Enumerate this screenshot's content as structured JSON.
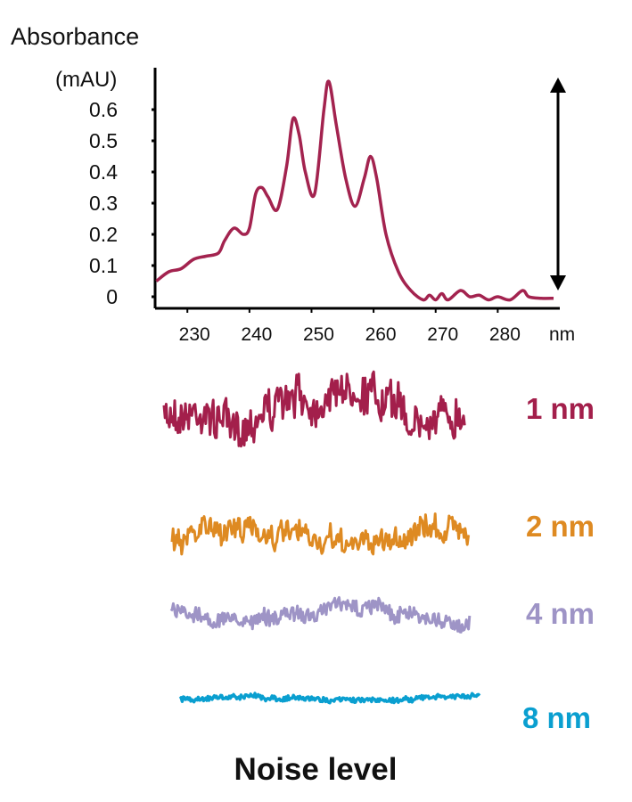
{
  "chart_data": [
    {
      "type": "line",
      "ylabel_line1": "Absorbance",
      "ylabel_line2": "(mAU)",
      "xunit": "nm",
      "xlim": [
        224.8,
        290
      ],
      "ylim": [
        0,
        0.73
      ],
      "xticks": [
        230,
        240,
        250,
        260,
        270,
        280
      ],
      "yticks": [
        "0",
        "0.1",
        "0.2",
        "0.3",
        "0.4",
        "0.5",
        "0.6"
      ],
      "yticks_values": [
        0,
        0.1,
        0.2,
        0.3,
        0.4,
        0.5,
        0.6
      ],
      "grid": false,
      "line_color": "#a3234f",
      "annotation": "double-headed arrow spanning baseline to peak height",
      "x": [
        225,
        227,
        229,
        231,
        233,
        235,
        236,
        237.5,
        239,
        240,
        241,
        242,
        243,
        244.5,
        246,
        247,
        248,
        249,
        250.5,
        252,
        252.8,
        254,
        255.5,
        257,
        258.5,
        259.5,
        260.5,
        262,
        264,
        266,
        268,
        269,
        270,
        271,
        272,
        274,
        275.5,
        277,
        278.5,
        280,
        282,
        284,
        285,
        287,
        289
      ],
      "y": [
        0.05,
        0.08,
        0.09,
        0.12,
        0.13,
        0.14,
        0.18,
        0.22,
        0.2,
        0.22,
        0.33,
        0.35,
        0.32,
        0.28,
        0.42,
        0.57,
        0.52,
        0.4,
        0.33,
        0.6,
        0.69,
        0.55,
        0.38,
        0.29,
        0.38,
        0.45,
        0.38,
        0.2,
        0.08,
        0.02,
        -0.01,
        0.005,
        -0.01,
        0.01,
        -0.01,
        0.02,
        0.0,
        0.005,
        -0.01,
        0.0,
        -0.01,
        0.02,
        0.0,
        -0.005,
        -0.005
      ]
    },
    {
      "type": "line",
      "title": "Noise level",
      "series": [
        {
          "name": "1 nm",
          "color": "#a31f4b",
          "relative_amplitude": 1.0
        },
        {
          "name": "2 nm",
          "color": "#de8a22",
          "relative_amplitude": 0.6
        },
        {
          "name": "4 nm",
          "color": "#9e94c6",
          "relative_amplitude": 0.42
        },
        {
          "name": "8 nm",
          "color": "#0a9fd0",
          "relative_amplitude": 0.13
        }
      ]
    }
  ]
}
